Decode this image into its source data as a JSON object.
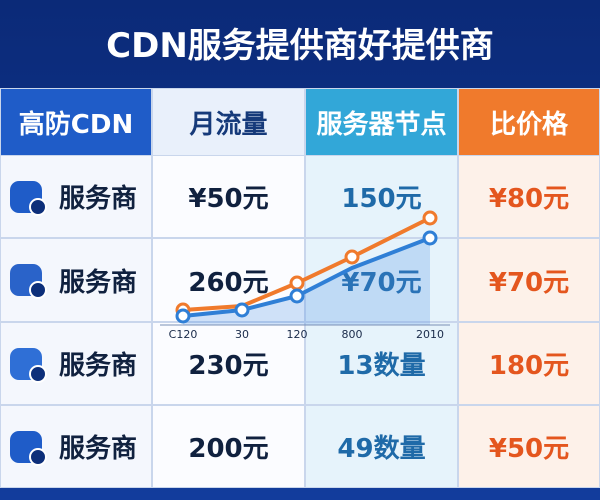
{
  "header": {
    "title": "CDN服务提供商好提供商"
  },
  "table": {
    "columns": [
      "高防CDN",
      "月流量",
      "服务器节点",
      "比价格"
    ],
    "rows": [
      [
        "服务商",
        "¥50元",
        "150元",
        "¥80元"
      ],
      [
        "服务商",
        "260元",
        "¥70元",
        "¥70元"
      ],
      [
        "服务商",
        "230元",
        "13数量",
        "180元"
      ],
      [
        "服务商",
        "200元",
        "49数量",
        "¥50元"
      ]
    ]
  },
  "overlay": {
    "axis_labels": [
      "C120",
      "30",
      "120",
      "800",
      "2010"
    ]
  }
}
